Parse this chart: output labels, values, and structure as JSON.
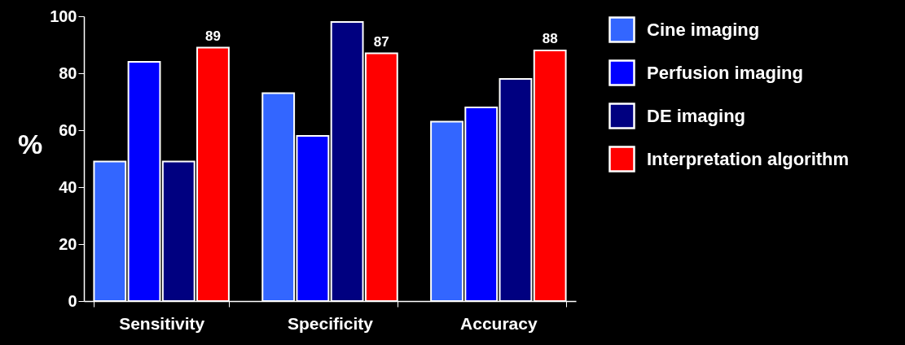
{
  "chart_data": {
    "type": "bar",
    "ylabel": "%",
    "categories": [
      "Sensitivity",
      "Specificity",
      "Accuracy"
    ],
    "series": [
      {
        "name": "Cine imaging",
        "color": "#3366ff",
        "values": [
          49,
          73,
          63
        ]
      },
      {
        "name": "Perfusion imaging",
        "color": "#0000ff",
        "values": [
          84,
          58,
          68
        ]
      },
      {
        "name": "DE imaging",
        "color": "#000080",
        "values": [
          49,
          98,
          78
        ]
      },
      {
        "name": "Interpretation algorithm",
        "color": "#ff0000",
        "values": [
          89,
          87,
          88
        ],
        "value_labels": [
          "89",
          "87",
          "88"
        ]
      }
    ],
    "ylim": [
      0,
      100
    ],
    "yticks": [
      0,
      20,
      40,
      60,
      80,
      100
    ],
    "grid": false,
    "legend": "right"
  }
}
